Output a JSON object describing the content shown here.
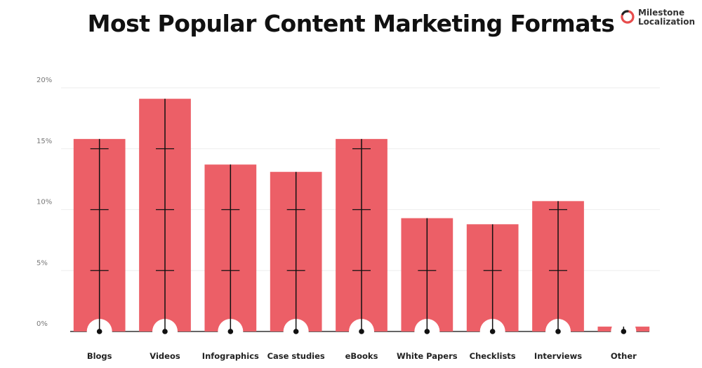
{
  "brand": {
    "line1": "Milestone",
    "line2": "Localization",
    "accent": "#e74c4c"
  },
  "chart_data": {
    "type": "bar",
    "title": "Most Popular Content Marketing Formats",
    "xlabel": "",
    "ylabel": "",
    "categories": [
      "Blogs",
      "Videos",
      "Infographics",
      "Case studies",
      "eBooks",
      "White Papers",
      "Checklists",
      "Interviews",
      "Other"
    ],
    "values": [
      15.8,
      19.1,
      13.7,
      13.1,
      15.8,
      9.3,
      8.8,
      10.7,
      0.4
    ],
    "ylim": [
      0,
      20
    ],
    "yticks": [
      0,
      5,
      10,
      15,
      20
    ],
    "ytick_labels": [
      "0%",
      "5%",
      "10%",
      "15%",
      "20%"
    ],
    "grid": true,
    "colors": {
      "bar": "#ec5f67",
      "axis": "#333333",
      "grid": "#eeeeee",
      "marker": "#111111"
    }
  }
}
